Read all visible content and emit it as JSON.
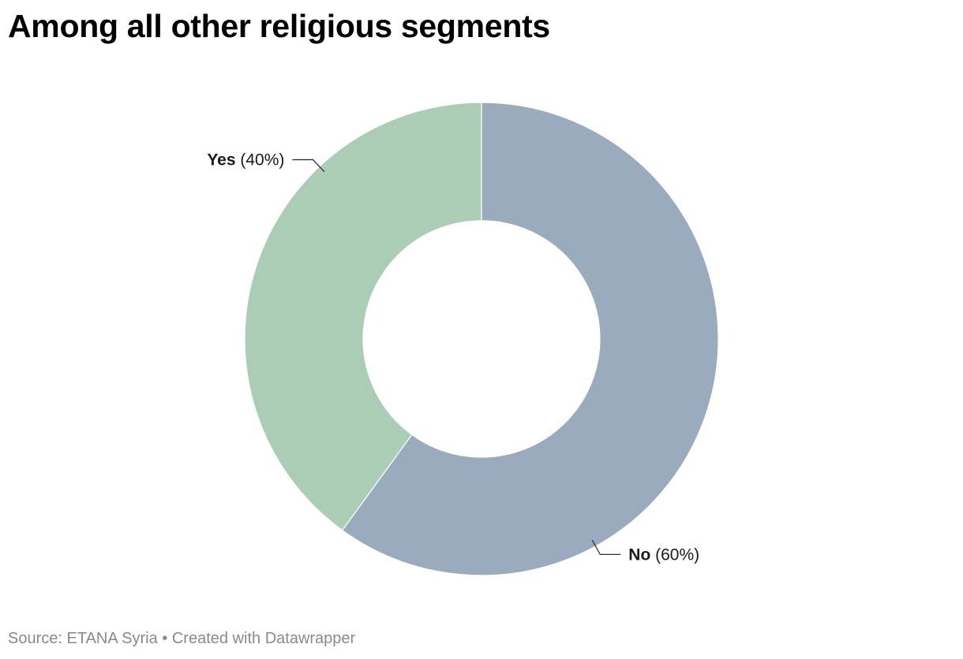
{
  "chart_data": {
    "type": "pie",
    "variant": "donut",
    "title": "Among all other religious segments",
    "slices": [
      {
        "label": "No",
        "value": 60,
        "display": "(60%)",
        "color": "#9aabbd"
      },
      {
        "label": "Yes",
        "value": 40,
        "display": "(40%)",
        "color": "#abcdb5"
      }
    ],
    "start": "12 o'clock",
    "direction": "clockwise",
    "legend": "none"
  },
  "footer": {
    "source_label": "Source:",
    "source_name": "ETANA Syria",
    "separator": "•",
    "credit": "Created with Datawrapper"
  }
}
